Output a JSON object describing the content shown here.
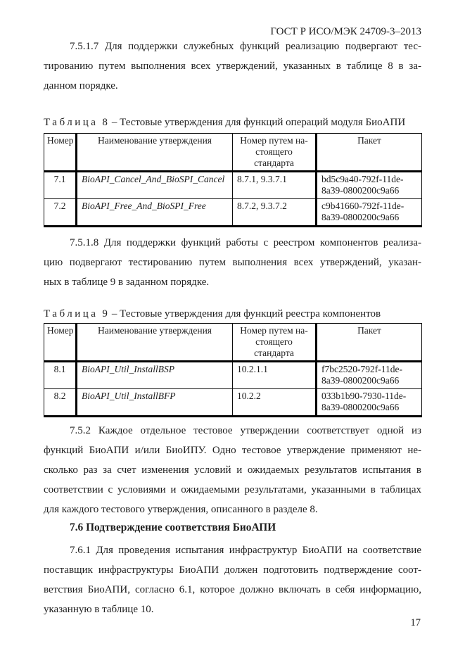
{
  "page": {
    "running_header": "ГОСТ Р ИСО/МЭК 24709-3–2013",
    "page_number": "17"
  },
  "content": {
    "p_7_5_1_7": {
      "lines": [
        "7.5.1.7 Для поддержки служебных функций реализацию подвергают тес-",
        "тированию путем выполнения всех утверждений, указанных в таблице 8 в за-",
        "данном порядке."
      ]
    },
    "p_7_5_1_8": {
      "lines": [
        "7.5.1.8 Для поддержки функций работы с реестром компонентов реализа-",
        "цию подвергают тестированию путем выполнения всех утверждений, указан-",
        "ных в таблице 9 в заданном порядке."
      ]
    },
    "p_7_5_2": {
      "lines": [
        "7.5.2 Каждое отдельное тестовое утверждении соответствует одной из",
        "функций БиоАПИ и/или БиоИПУ. Одно тестовое утверждение применяют не-",
        "сколько раз за счет изменения условий и ожидаемых результатов испытания в",
        "соответствии с условиями и ожидаемыми результатами, указанными в таблицах",
        "для каждого тестового утверждения, описанного в разделе 8."
      ]
    },
    "h_7_6": "7.6 Подтверждение соответствия БиоАПИ",
    "p_7_6_1": {
      "lines": [
        "7.6.1 Для проведения испытания инфраструктур БиоАПИ на соответствие",
        "поставщик инфраструктуры БиоАПИ должен подготовить подтверждение соот-",
        "ветствия БиоАПИ, согласно 6.1, которое должно включать в себя информацию,",
        "указанную в таблице 10."
      ]
    }
  },
  "tables": [
    {
      "caption_label": "Таблица",
      "caption_number": "8",
      "caption_text": "– Тестовые утверждения для функций операций модуля БиоАПИ",
      "column_headers": [
        [
          "Номер"
        ],
        [
          "Наименование утверждения"
        ],
        [
          "Номер путем на-",
          "стоящего",
          "стандарта"
        ],
        [
          "Пакет"
        ]
      ],
      "rows": [
        {
          "number": "7.1",
          "assertion": "BioAPI_Cancel_And_BioSPI_Cancel",
          "clause": "8.7.1, 9.3.7.1",
          "package_lines": [
            "bd5c9a40-792f-11de-",
            "8a39-0800200c9a66"
          ]
        },
        {
          "number": "7.2",
          "assertion": "BioAPI_Free_And_BioSPI_Free",
          "clause": "8.7.2, 9.3.7.2",
          "package_lines": [
            "c9b41660-792f-11de-",
            "8a39-0800200c9a66"
          ]
        }
      ]
    },
    {
      "caption_label": "Таблица",
      "caption_number": "9",
      "caption_text": "– Тестовые утверждения для функций реестра компонентов",
      "column_headers": [
        [
          "Номер"
        ],
        [
          "Наименование утверждения"
        ],
        [
          "Номер путем на-",
          "стоящего",
          "стандарта"
        ],
        [
          "Пакет"
        ]
      ],
      "rows": [
        {
          "number": "8.1",
          "assertion": "BioAPI_Util_InstallBSP",
          "clause": "10.2.1.1",
          "package_lines": [
            "f7bc2520-792f-11de-",
            "8a39-0800200c9a66"
          ]
        },
        {
          "number": "8.2",
          "assertion": "BioAPI_Util_InstallBFP",
          "clause": "10.2.2",
          "package_lines": [
            "033b1b90-7930-11de-",
            "8a39-0800200c9a66"
          ]
        }
      ]
    }
  ]
}
